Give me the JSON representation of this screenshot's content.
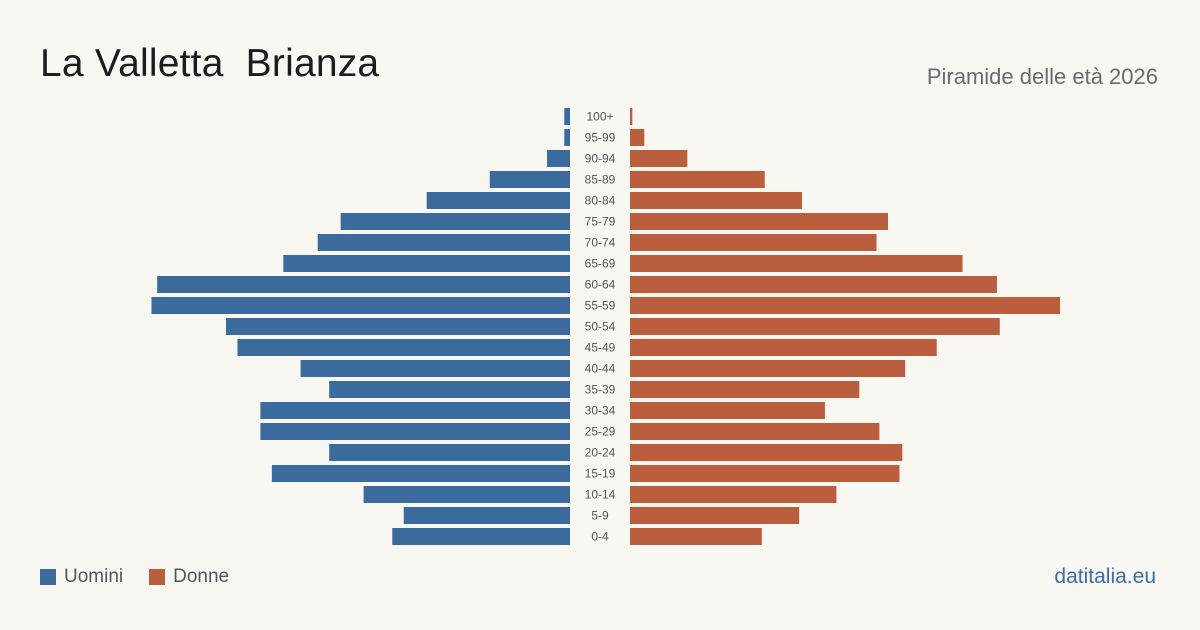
{
  "header": {
    "title": "La Valletta  Brianza",
    "subtitle": "Piramide delle età 2026"
  },
  "legend": {
    "men_label": "Uomini",
    "women_label": "Donne"
  },
  "source": "datitalia.eu",
  "colors": {
    "men": "#3b6a9c",
    "women": "#bb5e3d",
    "background": "#f9f7f2"
  },
  "chart_data": {
    "type": "bar",
    "orientation": "horizontal-pyramid",
    "categories": [
      "100+",
      "95-99",
      "90-94",
      "85-89",
      "80-84",
      "75-79",
      "70-74",
      "65-69",
      "60-64",
      "55-59",
      "50-54",
      "45-49",
      "40-44",
      "35-39",
      "30-34",
      "25-29",
      "20-24",
      "15-19",
      "10-14",
      "5-9",
      "0-4"
    ],
    "series": [
      {
        "name": "Uomini",
        "values": [
          1,
          1,
          4,
          14,
          25,
          40,
          44,
          50,
          72,
          73,
          60,
          58,
          47,
          42,
          54,
          54,
          42,
          52,
          36,
          29,
          31
        ]
      },
      {
        "name": "Donne",
        "values": [
          0.4,
          2.5,
          10,
          23.5,
          30,
          45,
          43,
          58,
          64,
          75,
          64.5,
          53.5,
          48,
          40,
          34,
          43.5,
          47.5,
          47,
          36,
          29.5,
          23
        ]
      }
    ],
    "xlim": [
      0,
      75
    ],
    "grid": false,
    "legend_position": "bottom-left"
  }
}
